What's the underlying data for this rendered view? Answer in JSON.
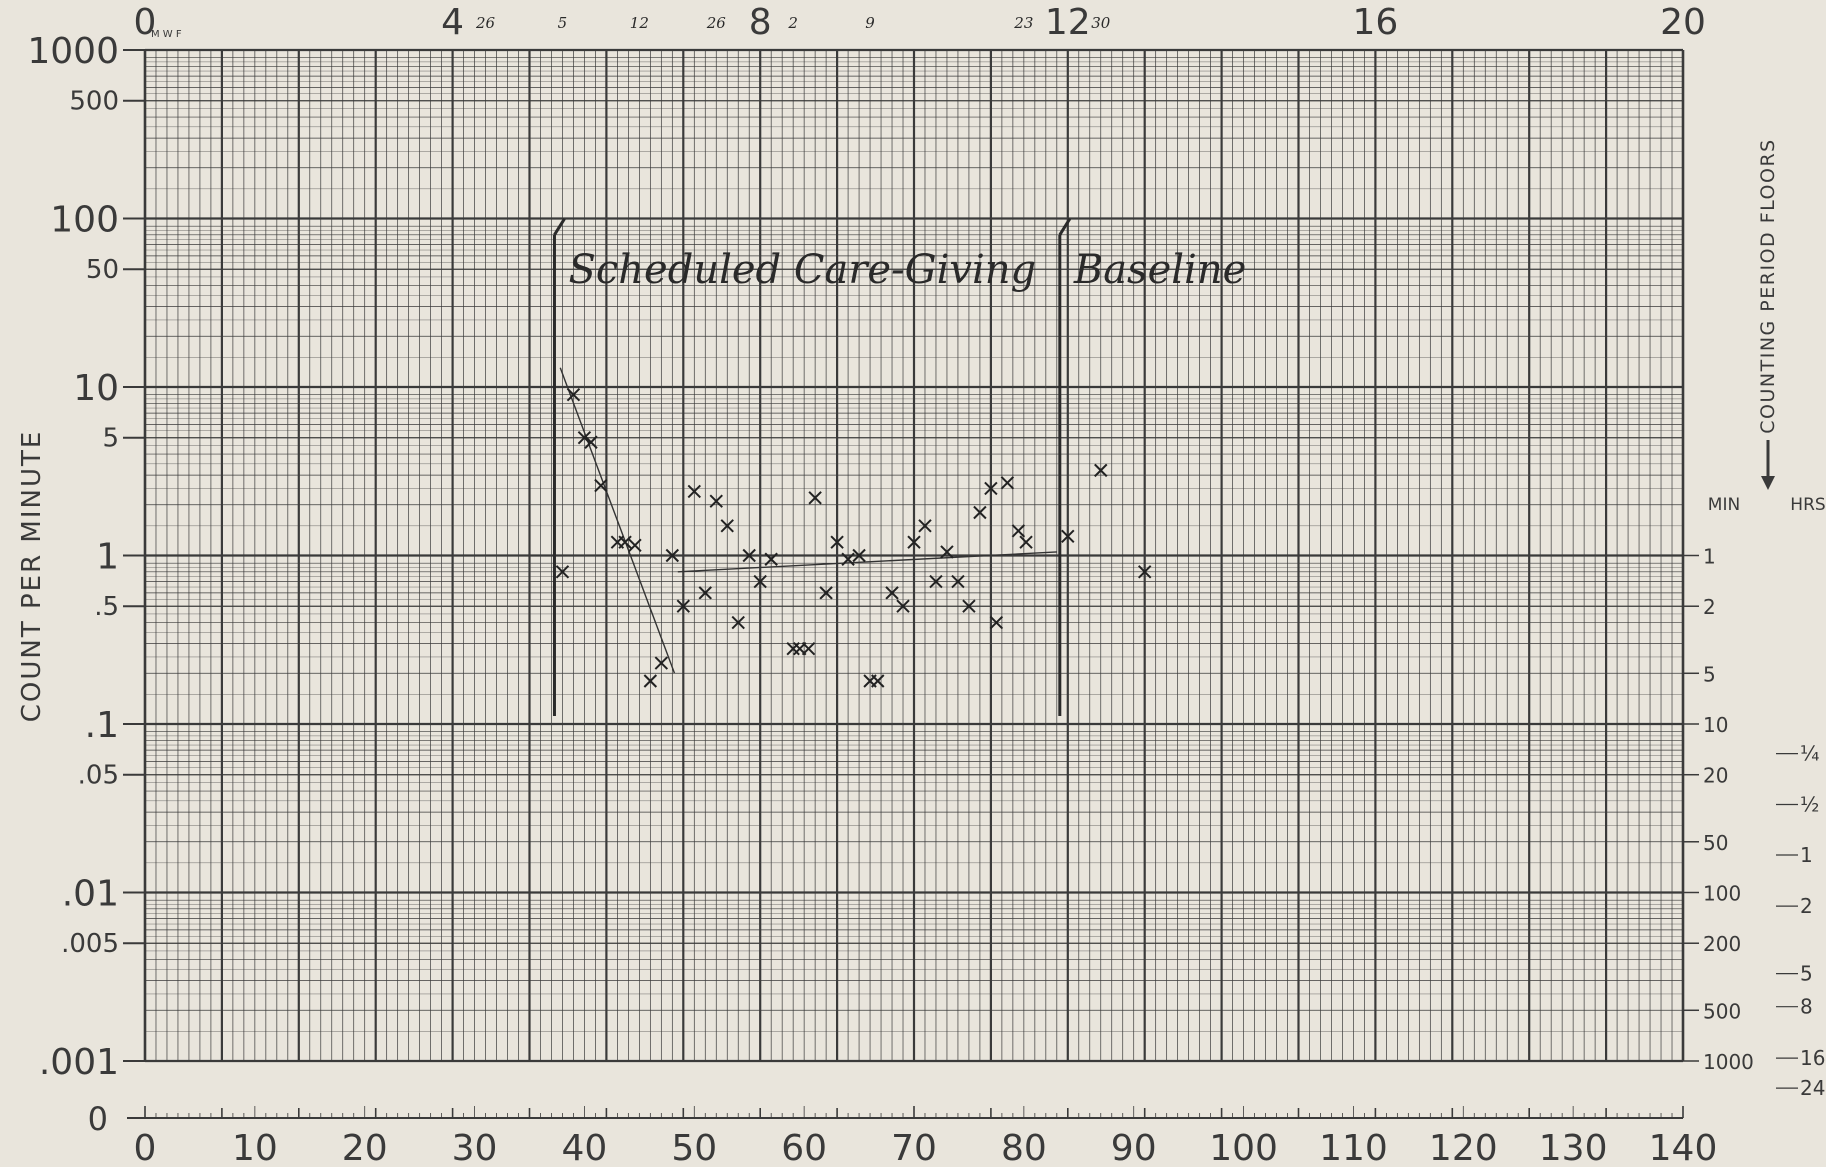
{
  "chart_data": {
    "type": "scatter",
    "title": "",
    "ylabel": "COUNT PER MINUTE",
    "right_label": "COUNTING PERIOD FLOORS",
    "yscale": "log",
    "xlim": [
      0,
      140
    ],
    "ylim": [
      0.001,
      1000
    ],
    "grid": true,
    "x_ticks": [
      "0",
      "10",
      "20",
      "30",
      "40",
      "50",
      "60",
      "70",
      "80",
      "90",
      "100",
      "110",
      "120",
      "130",
      "140"
    ],
    "top_ticks": [
      "0",
      "4",
      "8",
      "12",
      "16",
      "20"
    ],
    "top_small_labels": [
      "26",
      "5",
      "12",
      "26",
      "2",
      "9",
      "23",
      "30"
    ],
    "mwf_label": "M W F",
    "y_ticks": [
      {
        "label": "1000",
        "value": 1000
      },
      {
        "label": "500",
        "value": 500
      },
      {
        "label": "100",
        "value": 100
      },
      {
        "label": "50",
        "value": 50
      },
      {
        "label": "10",
        "value": 10
      },
      {
        "label": "5",
        "value": 5
      },
      {
        "label": "1",
        "value": 1
      },
      {
        "label": ".5",
        "value": 0.5
      },
      {
        "label": ".1",
        "value": 0.1
      },
      {
        "label": ".05",
        "value": 0.05
      },
      {
        "label": ".01",
        "value": 0.01
      },
      {
        "label": ".005",
        "value": 0.005
      },
      {
        "label": ".001",
        "value": 0.001
      }
    ],
    "y_zero_label": "0",
    "floor_headers": {
      "min": "MIN",
      "hrs": "HRS"
    },
    "floor_min": [
      {
        "label": "1",
        "value": 1
      },
      {
        "label": "2",
        "value": 0.5
      },
      {
        "label": "5",
        "value": 0.2
      },
      {
        "label": "10",
        "value": 0.1
      },
      {
        "label": "20",
        "value": 0.05
      },
      {
        "label": "50",
        "value": 0.02
      },
      {
        "label": "100",
        "value": 0.01
      },
      {
        "label": "200",
        "value": 0.005
      },
      {
        "label": "500",
        "value": 0.002
      },
      {
        "label": "1000",
        "value": 0.001
      }
    ],
    "floor_hrs": [
      {
        "label": "¼",
        "value": 0.0667
      },
      {
        "label": "½",
        "value": 0.0333
      },
      {
        "label": "1",
        "value": 0.0167
      },
      {
        "label": "2",
        "value": 0.0083
      },
      {
        "label": "5",
        "value": 0.0033
      },
      {
        "label": "8",
        "value": 0.0021
      },
      {
        "label": "16",
        "value": 0.00104
      },
      {
        "label": "24",
        "value": 0.00069
      }
    ],
    "phases": [
      {
        "name": "Scheduled Care-Giving",
        "x": 37
      },
      {
        "name": "Baseline",
        "x": 83
      }
    ],
    "points": [
      [
        38,
        0.8
      ],
      [
        39,
        9
      ],
      [
        40,
        5
      ],
      [
        40.6,
        4.7
      ],
      [
        41.5,
        2.6
      ],
      [
        43,
        1.2
      ],
      [
        43.7,
        1.2
      ],
      [
        44.6,
        1.15
      ],
      [
        46,
        0.18
      ],
      [
        47,
        0.23
      ],
      [
        48,
        1
      ],
      [
        49,
        0.5
      ],
      [
        50,
        2.4
      ],
      [
        51,
        0.6
      ],
      [
        52,
        2.1
      ],
      [
        53,
        1.5
      ],
      [
        54,
        0.4
      ],
      [
        55,
        1
      ],
      [
        56,
        0.7
      ],
      [
        57,
        0.95
      ],
      [
        59,
        0.28
      ],
      [
        59.6,
        0.28
      ],
      [
        60.4,
        0.28
      ],
      [
        61,
        2.2
      ],
      [
        62,
        0.6
      ],
      [
        63,
        1.2
      ],
      [
        64,
        0.95
      ],
      [
        65,
        1
      ],
      [
        66,
        0.18
      ],
      [
        66.7,
        0.18
      ],
      [
        68,
        0.6
      ],
      [
        69,
        0.5
      ],
      [
        70,
        1.2
      ],
      [
        71,
        1.5
      ],
      [
        72,
        0.7
      ],
      [
        73,
        1.05
      ],
      [
        74,
        0.7
      ],
      [
        75,
        0.5
      ],
      [
        76,
        1.8
      ],
      [
        77,
        2.5
      ],
      [
        77.5,
        0.4
      ],
      [
        78.5,
        2.7
      ],
      [
        79.5,
        1.4
      ],
      [
        80.2,
        1.2
      ],
      [
        84,
        1.3
      ],
      [
        87,
        3.2
      ],
      [
        91,
        0.8
      ]
    ],
    "trend_lines": [
      {
        "x": [
          37.8,
          48.2
        ],
        "y": [
          13,
          0.2
        ]
      },
      {
        "x": [
          48.5,
          83
        ],
        "y": [
          0.8,
          1.05
        ]
      }
    ]
  }
}
